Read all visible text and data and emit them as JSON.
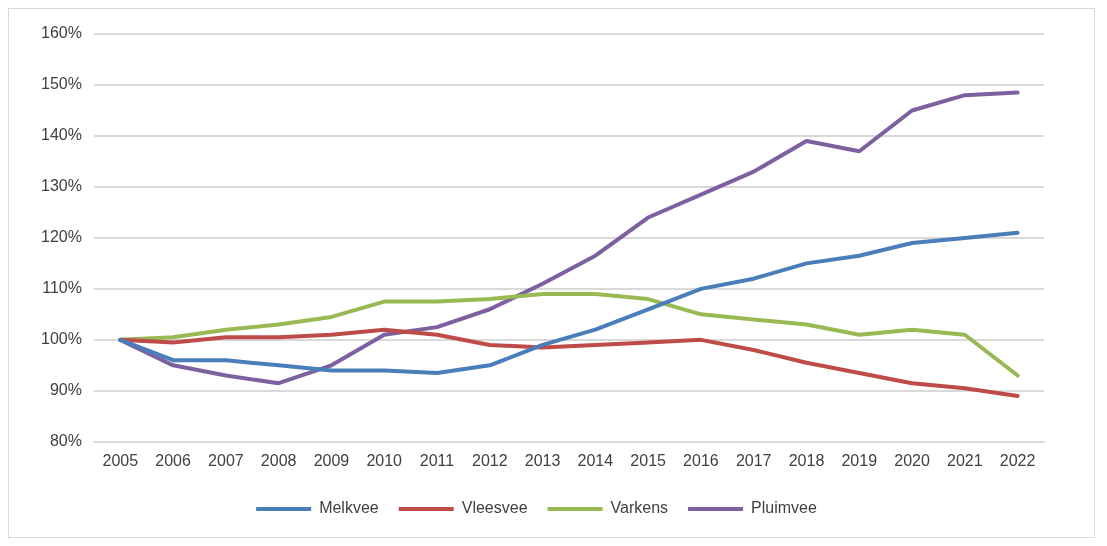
{
  "chart_data": {
    "type": "line",
    "categories": [
      "2005",
      "2006",
      "2007",
      "2008",
      "2009",
      "2010",
      "2011",
      "2012",
      "2013",
      "2014",
      "2015",
      "2016",
      "2017",
      "2018",
      "2019",
      "2020",
      "2021",
      "2022"
    ],
    "series": [
      {
        "name": "Melkvee",
        "color": "#4a7ebb",
        "values": [
          100,
          96,
          96,
          95,
          94,
          94,
          93.5,
          95,
          99,
          102,
          106,
          110,
          112,
          115,
          116.5,
          119,
          120,
          121
        ]
      },
      {
        "name": "Vleesvee",
        "color": "#be4b48",
        "values": [
          100,
          99.5,
          100.5,
          100.5,
          101,
          102,
          101,
          99,
          98.5,
          99,
          99.5,
          100,
          98,
          95.5,
          93.5,
          91.5,
          90.5,
          89
        ]
      },
      {
        "name": "Varkens",
        "color": "#98b954",
        "values": [
          100,
          100.5,
          102,
          103,
          104.5,
          107.5,
          107.5,
          108,
          109,
          109,
          108,
          105,
          104,
          103,
          101,
          102,
          101,
          93
        ]
      },
      {
        "name": "Pluimvee",
        "color": "#7d60a0",
        "values": [
          100,
          95,
          93,
          91.5,
          95,
          101,
          102.5,
          106,
          111,
          116.5,
          124,
          128.5,
          133,
          139,
          137,
          145,
          148,
          148.5
        ]
      }
    ],
    "ylim": [
      80,
      160
    ],
    "yticks": [
      {
        "value": 80,
        "label": "80%"
      },
      {
        "value": 90,
        "label": "90%"
      },
      {
        "value": 100,
        "label": "100%"
      },
      {
        "value": 110,
        "label": "110%"
      },
      {
        "value": 120,
        "label": "120%"
      },
      {
        "value": 130,
        "label": "130%"
      },
      {
        "value": 140,
        "label": "140%"
      },
      {
        "value": 150,
        "label": "150%"
      },
      {
        "value": 160,
        "label": "160%"
      }
    ],
    "grid": "y",
    "legend": "bottom",
    "marker": "none",
    "line_style": "solid"
  }
}
